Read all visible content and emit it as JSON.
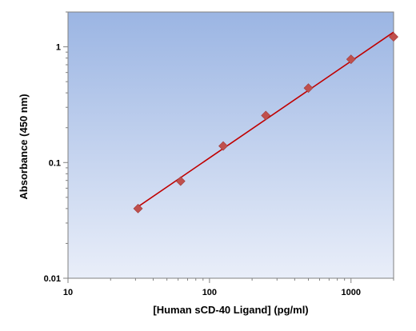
{
  "chart_data": {
    "type": "scatter",
    "title": "",
    "xlabel": "[Human sCD-40 Ligand] (pg/ml)",
    "ylabel": "Absorbance (450 nm)",
    "x_scale": "log",
    "y_scale": "log",
    "xlim": [
      10,
      2000
    ],
    "ylim": [
      0.01,
      2
    ],
    "x_ticks": [
      10,
      100,
      1000
    ],
    "x_tick_labels": [
      "10",
      "100",
      "1000"
    ],
    "y_ticks": [
      0.01,
      0.1,
      1
    ],
    "y_tick_labels": [
      "0.01",
      "0.1",
      "1"
    ],
    "grid": false,
    "legend": "none",
    "series": [
      {
        "x": [
          31.25,
          62.5,
          125,
          250,
          500,
          1000,
          2000
        ],
        "y": [
          0.04,
          0.069,
          0.139,
          0.255,
          0.44,
          0.78,
          1.22
        ]
      }
    ],
    "fit_line": {
      "x": [
        31.25,
        2000
      ],
      "y": [
        0.0415,
        1.34
      ]
    },
    "colors": {
      "marker": "#C0504D",
      "marker_edge": "#9E3A38",
      "fit_line": "#C00000",
      "plot_bg_top": "#9BB5E3",
      "plot_bg_bottom": "#E9EEF9",
      "axis": "#808080"
    }
  }
}
